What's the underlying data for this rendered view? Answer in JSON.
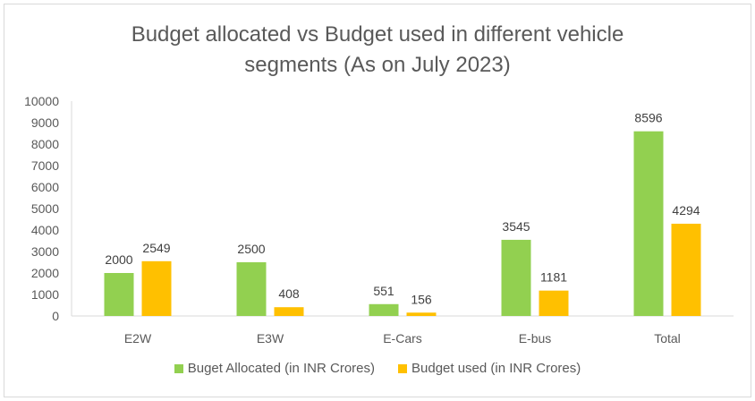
{
  "chart_data": {
    "type": "bar",
    "title": "Budget allocated vs Budget used in different vehicle segments (As on July 2023)",
    "title_lines": [
      "Budget allocated vs Budget used in different vehicle",
      "segments (As on July 2023)"
    ],
    "categories": [
      "E2W",
      "E3W",
      "E-Cars",
      "E-bus",
      "Total"
    ],
    "series": [
      {
        "name": "Buget Allocated (in INR Crores)",
        "values": [
          2000,
          2500,
          551,
          3545,
          8596
        ],
        "color": "#92D050"
      },
      {
        "name": "Budget used (in INR Crores)",
        "values": [
          2549,
          408,
          156,
          1181,
          4294
        ],
        "color": "#FFC000"
      }
    ],
    "ylim": [
      0,
      10000
    ],
    "yticks": [
      0,
      1000,
      2000,
      3000,
      4000,
      5000,
      6000,
      7000,
      8000,
      9000,
      10000
    ],
    "xlabel": "",
    "ylabel": "",
    "grid": false,
    "legend": "bottom",
    "data_labels": true
  }
}
